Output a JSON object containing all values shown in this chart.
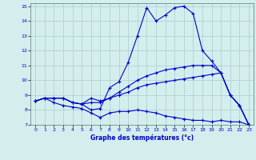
{
  "xlabel": "Graphe des températures (°c)",
  "hours": [
    0,
    1,
    2,
    3,
    4,
    5,
    6,
    7,
    8,
    9,
    10,
    11,
    12,
    13,
    14,
    15,
    16,
    17,
    18,
    19,
    20,
    21,
    22,
    23
  ],
  "temp_main": [
    8.6,
    8.8,
    8.8,
    8.8,
    8.5,
    8.4,
    8.0,
    8.1,
    9.5,
    9.9,
    11.2,
    13.0,
    14.9,
    14.0,
    14.4,
    14.9,
    15.0,
    14.5,
    12.0,
    11.3,
    10.5,
    9.0,
    8.3,
    7.0
  ],
  "temp_max": [
    8.6,
    8.8,
    8.8,
    8.8,
    8.5,
    8.4,
    8.8,
    8.6,
    8.8,
    9.2,
    9.6,
    10.0,
    10.3,
    10.5,
    10.7,
    10.8,
    10.9,
    11.0,
    11.0,
    11.0,
    10.5,
    9.0,
    8.3,
    7.0
  ],
  "temp_min": [
    8.6,
    8.8,
    8.8,
    8.8,
    8.5,
    8.4,
    8.5,
    8.5,
    8.8,
    9.0,
    9.2,
    9.5,
    9.7,
    9.8,
    9.9,
    10.0,
    10.1,
    10.2,
    10.3,
    10.4,
    10.5,
    9.0,
    8.3,
    7.0
  ],
  "temp_dew": [
    8.6,
    8.8,
    8.5,
    8.3,
    8.2,
    8.1,
    7.8,
    7.5,
    7.8,
    7.9,
    7.9,
    8.0,
    7.9,
    7.8,
    7.6,
    7.5,
    7.4,
    7.3,
    7.3,
    7.2,
    7.3,
    7.2,
    7.2,
    7.0
  ],
  "ylim": [
    7,
    15
  ],
  "xlim": [
    0,
    23
  ],
  "line_color": "#0000cc",
  "bg_color": "#d4eeed",
  "grid_color": "#aacccc"
}
